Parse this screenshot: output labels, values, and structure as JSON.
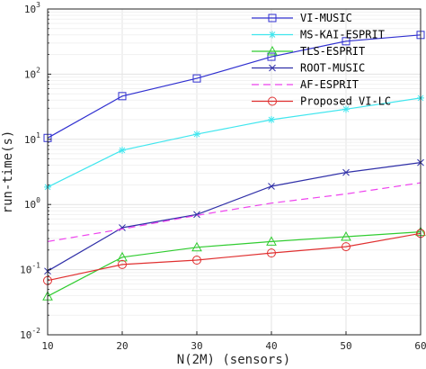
{
  "chart_data": {
    "type": "line",
    "title": "",
    "xlabel": "N(2M) (sensors)",
    "ylabel": "run-time(s)",
    "x": [
      10,
      20,
      30,
      40,
      50,
      60
    ],
    "xlim": [
      10,
      60
    ],
    "ylim": [
      0.01,
      1000
    ],
    "yscale": "log",
    "grid": true,
    "legend_position": "top-right",
    "x_ticks": [
      10,
      20,
      30,
      40,
      50,
      60
    ],
    "y_ticks": [
      {
        "value": 0.01,
        "base": "10",
        "exp": "-2"
      },
      {
        "value": 0.1,
        "base": "10",
        "exp": "-1"
      },
      {
        "value": 1,
        "base": "10",
        "exp": "0"
      },
      {
        "value": 10,
        "base": "10",
        "exp": "1"
      },
      {
        "value": 100,
        "base": "10",
        "exp": "2"
      },
      {
        "value": 1000,
        "base": "10",
        "exp": "3"
      }
    ],
    "series": [
      {
        "name": "VI-MUSIC",
        "color": "#3030d0",
        "marker": "square",
        "dash": "",
        "values": [
          10.5,
          46,
          86,
          185,
          320,
          400
        ]
      },
      {
        "name": "MS-KAI-ESPRIT",
        "color": "#40e6ee",
        "marker": "star",
        "dash": "",
        "values": [
          1.85,
          6.8,
          12,
          20,
          29,
          43
        ]
      },
      {
        "name": "TLS-ESPRIT",
        "color": "#30cc30",
        "marker": "triangle",
        "dash": "",
        "values": [
          0.039,
          0.155,
          0.22,
          0.27,
          0.32,
          0.38
        ]
      },
      {
        "name": "ROOT-MUSIC",
        "color": "#3030a8",
        "marker": "x",
        "dash": "",
        "values": [
          0.095,
          0.44,
          0.7,
          1.9,
          3.1,
          4.4
        ]
      },
      {
        "name": "AF-ESPRIT",
        "color": "#ee44ee",
        "marker": "none",
        "dash": "8,5",
        "values": [
          0.27,
          0.42,
          0.68,
          1.05,
          1.45,
          2.15
        ]
      },
      {
        "name": "Proposed VI-LC",
        "color": "#e03030",
        "marker": "circle",
        "dash": "",
        "values": [
          0.068,
          0.12,
          0.14,
          0.18,
          0.225,
          0.36
        ]
      }
    ]
  }
}
